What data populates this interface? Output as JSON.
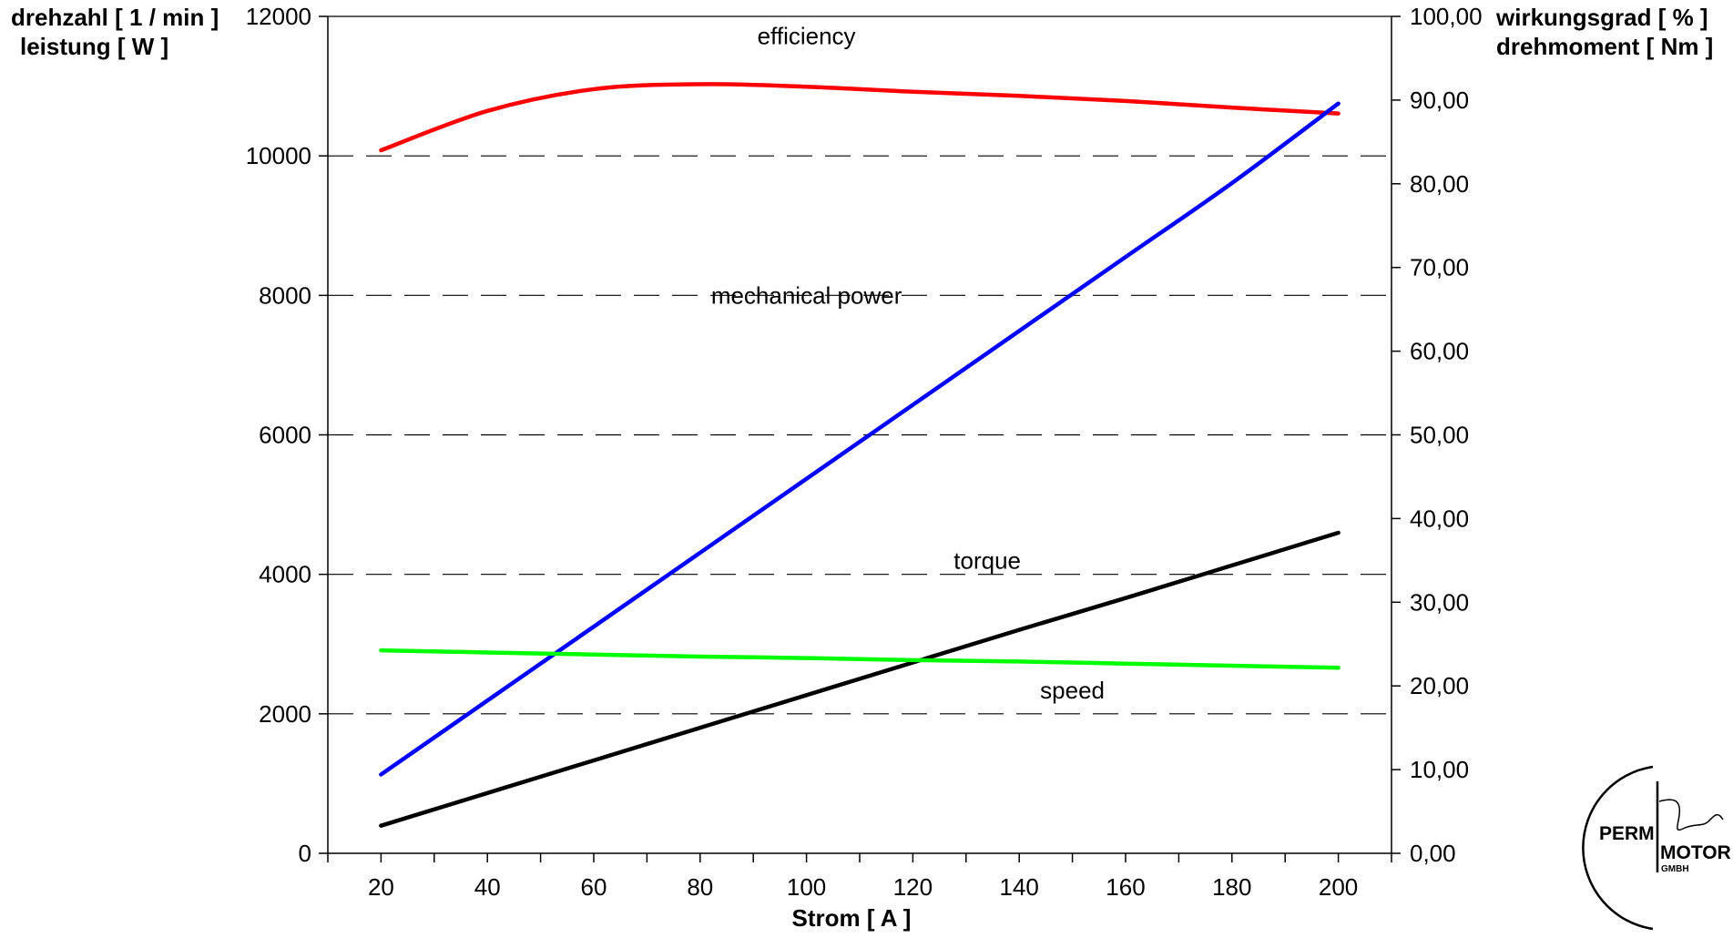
{
  "chart_data": {
    "type": "line",
    "x": [
      20,
      40,
      60,
      80,
      100,
      120,
      140,
      160,
      180,
      200
    ],
    "xlabel": "Strom [ A ]",
    "xlim": [
      10,
      210
    ],
    "xticks": [
      20,
      40,
      60,
      80,
      100,
      120,
      140,
      160,
      180,
      200
    ],
    "ylabel_left": [
      "drehzahl [ 1 / min ]",
      "leistung [ W ]"
    ],
    "ylim_left": [
      0,
      12000
    ],
    "yticks_left": [
      0,
      2000,
      4000,
      6000,
      8000,
      10000,
      12000
    ],
    "ylabel_right": [
      "wirkungsgrad [ % ]",
      "drehmoment [ Nm ]"
    ],
    "ylim_right": [
      0,
      100
    ],
    "yticks_right": [
      "0,00",
      "10,00",
      "20,00",
      "30,00",
      "40,00",
      "50,00",
      "60,00",
      "70,00",
      "80,00",
      "90,00",
      "100,00"
    ],
    "grid": "horizontal dashed at left-axis major ticks",
    "series": [
      {
        "name": "efficiency",
        "axis": "right",
        "color": "#ff0000",
        "values": [
          84.0,
          88.7,
          91.3,
          91.9,
          91.6,
          91.0,
          90.5,
          89.9,
          89.1,
          88.4
        ]
      },
      {
        "name": "mechanical power",
        "axis": "left",
        "color": "#0000ff",
        "values": [
          1130,
          2190,
          3250,
          4310,
          5370,
          6430,
          7490,
          8550,
          9610,
          10750
        ]
      },
      {
        "name": "torque",
        "axis": "right",
        "color": "#000000",
        "values": [
          3.3,
          7.2,
          11.1,
          15.0,
          18.9,
          22.8,
          26.7,
          30.5,
          34.4,
          38.3
        ]
      },
      {
        "name": "speed",
        "axis": "left",
        "color": "#00ff00",
        "values": [
          2910,
          2880,
          2850,
          2820,
          2800,
          2770,
          2750,
          2720,
          2690,
          2660
        ]
      }
    ],
    "annotations": [
      {
        "text": "efficiency",
        "x": 100,
        "y_left": 11600
      },
      {
        "text": "mechanical power",
        "x": 100,
        "y_left": 7880
      },
      {
        "text": "torque",
        "x": 134,
        "y_left": 4080
      },
      {
        "text": "speed",
        "x": 150,
        "y_left": 2220
      }
    ]
  },
  "logo": {
    "line1": "PERM",
    "line2": "MOTOR",
    "line3": "GMBH"
  }
}
